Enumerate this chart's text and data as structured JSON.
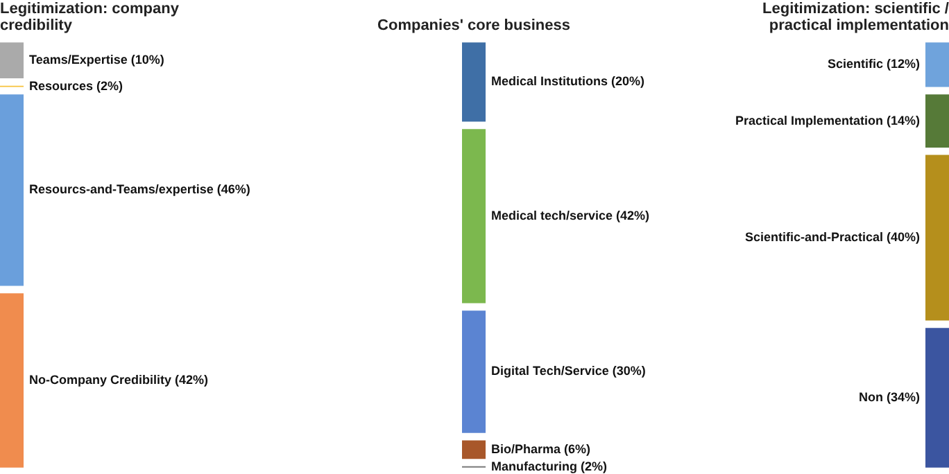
{
  "chart_data": [
    {
      "type": "other",
      "title": "Legitimization: company credibility",
      "categories": [
        "Teams/Expertise",
        "Resources",
        "Resourcs-and-Teams/expertise",
        "No-Company Credibility"
      ],
      "values": [
        10,
        2,
        46,
        42
      ],
      "value_labels": [
        "(10%)",
        "(2%)",
        "(46%)",
        "(42%)"
      ],
      "colors": [
        "#aaaaaa",
        "#f7c23c",
        "#6a9fdc",
        "#f08c4e"
      ]
    },
    {
      "type": "other",
      "title": "Companies' core business",
      "categories": [
        "Medical Institutions",
        "Medical tech/service",
        "Digital Tech/Service",
        "Bio/Pharma",
        "Manufacturing"
      ],
      "values": [
        20,
        42,
        30,
        6,
        2
      ],
      "value_labels": [
        "(20%)",
        "(42%)",
        "(30%)",
        "(6%)",
        "(2%)"
      ],
      "colors": [
        "#3f6fa6",
        "#7cb84e",
        "#5b84d2",
        "#a8572a",
        "#7a7a7a"
      ]
    },
    {
      "type": "other",
      "title": "Legitimization: scientific / practical implementation",
      "categories": [
        "Scientific",
        "Practical Implementation",
        "Scientific-and-Practical",
        "Non"
      ],
      "values": [
        12,
        14,
        40,
        34
      ],
      "value_labels": [
        "(12%)",
        "(14%)",
        "(40%)",
        "(34%)"
      ],
      "colors": [
        "#6fa3dc",
        "#567a38",
        "#b58f1c",
        "#3b55a0"
      ]
    }
  ]
}
